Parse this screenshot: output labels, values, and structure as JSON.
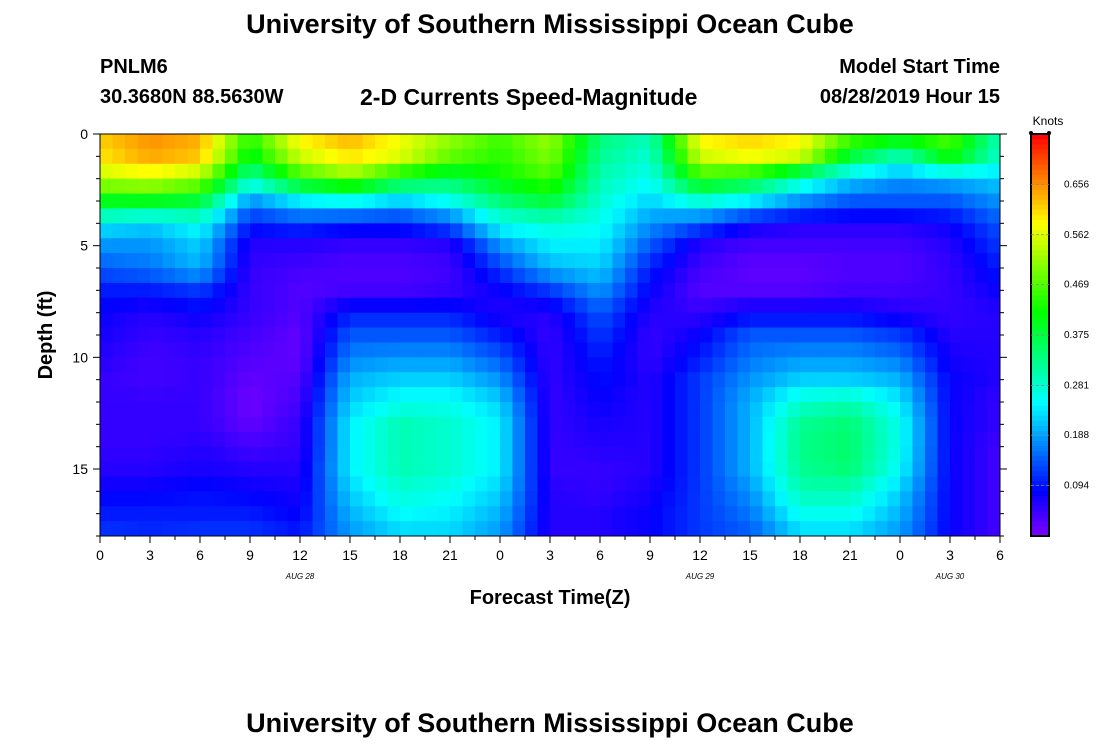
{
  "header": {
    "title": "University of Southern Mississippi Ocean Cube",
    "station_id": "PNLM6",
    "station_coords": "30.3680N 88.5630W",
    "plot_title": "2-D Currents Speed-Magnitude",
    "start_label": "Model Start Time",
    "start_value": "08/28/2019 Hour 15"
  },
  "footer": {
    "title": "University of Southern Mississippi Ocean Cube"
  },
  "chart_data": {
    "type": "heatmap",
    "xlabel": "Forecast Time(Z)",
    "ylabel": "Depth (ft)",
    "colorbar_label": "Knots",
    "y_range": [
      0,
      18
    ],
    "y_ticks": [
      0,
      5,
      10,
      15
    ],
    "x_tick_labels": [
      "0",
      "3",
      "6",
      "9",
      "12",
      "15",
      "18",
      "21",
      "0",
      "3",
      "6",
      "9",
      "12",
      "15",
      "18",
      "21",
      "0",
      "3",
      "6"
    ],
    "date_labels": [
      {
        "label": "AUG  28",
        "tick_index": 4
      },
      {
        "label": "AUG  29",
        "tick_index": 12
      },
      {
        "label": "AUG  30",
        "tick_index": 17
      }
    ],
    "colorbar_range": [
      0,
      0.75
    ],
    "colorbar_ticks": [
      0.094,
      0.188,
      0.281,
      0.375,
      0.469,
      0.562,
      0.656
    ],
    "colorbar_tick_labels": [
      "0.094",
      "0.188",
      "0.281",
      "0.375",
      "0.469",
      "0.562",
      "0.656"
    ],
    "time_hours": [
      0,
      3,
      6,
      9,
      12,
      15,
      18,
      21,
      24,
      27,
      30,
      33,
      36,
      39,
      42,
      45,
      48,
      51,
      54
    ],
    "depth_ft": [
      0,
      1,
      2,
      3,
      4,
      5,
      6,
      7,
      8,
      9,
      10,
      11,
      12,
      13,
      14,
      15,
      16,
      17,
      18
    ],
    "speed_knots": [
      [
        0.62,
        0.66,
        0.64,
        0.45,
        0.6,
        0.64,
        0.58,
        0.52,
        0.46,
        0.52,
        0.34,
        0.3,
        0.6,
        0.62,
        0.6,
        0.48,
        0.44,
        0.48,
        0.3
      ],
      [
        0.6,
        0.64,
        0.62,
        0.4,
        0.55,
        0.6,
        0.56,
        0.48,
        0.44,
        0.5,
        0.32,
        0.28,
        0.55,
        0.58,
        0.55,
        0.38,
        0.3,
        0.42,
        0.28
      ],
      [
        0.54,
        0.56,
        0.52,
        0.3,
        0.44,
        0.5,
        0.4,
        0.36,
        0.42,
        0.46,
        0.3,
        0.26,
        0.44,
        0.4,
        0.3,
        0.22,
        0.18,
        0.2,
        0.22
      ],
      [
        0.4,
        0.4,
        0.38,
        0.18,
        0.24,
        0.26,
        0.22,
        0.26,
        0.34,
        0.38,
        0.28,
        0.22,
        0.28,
        0.24,
        0.18,
        0.14,
        0.14,
        0.14,
        0.18
      ],
      [
        0.24,
        0.22,
        0.26,
        0.1,
        0.12,
        0.1,
        0.1,
        0.14,
        0.26,
        0.28,
        0.26,
        0.18,
        0.14,
        0.08,
        0.06,
        0.06,
        0.06,
        0.08,
        0.14
      ],
      [
        0.18,
        0.18,
        0.22,
        0.06,
        0.06,
        0.05,
        0.05,
        0.06,
        0.18,
        0.24,
        0.24,
        0.14,
        0.06,
        0.04,
        0.04,
        0.04,
        0.04,
        0.06,
        0.12
      ],
      [
        0.14,
        0.16,
        0.2,
        0.05,
        0.04,
        0.03,
        0.03,
        0.04,
        0.12,
        0.2,
        0.22,
        0.1,
        0.04,
        0.02,
        0.02,
        0.03,
        0.03,
        0.05,
        0.1
      ],
      [
        0.1,
        0.1,
        0.12,
        0.05,
        0.03,
        0.04,
        0.04,
        0.05,
        0.08,
        0.12,
        0.18,
        0.08,
        0.03,
        0.03,
        0.03,
        0.04,
        0.04,
        0.05,
        0.08
      ],
      [
        0.08,
        0.06,
        0.08,
        0.05,
        0.03,
        0.1,
        0.1,
        0.1,
        0.06,
        0.06,
        0.14,
        0.06,
        0.05,
        0.08,
        0.08,
        0.08,
        0.06,
        0.05,
        0.06
      ],
      [
        0.07,
        0.05,
        0.06,
        0.04,
        0.02,
        0.14,
        0.14,
        0.14,
        0.1,
        0.05,
        0.12,
        0.05,
        0.08,
        0.14,
        0.14,
        0.14,
        0.12,
        0.06,
        0.06
      ],
      [
        0.06,
        0.04,
        0.05,
        0.03,
        0.02,
        0.17,
        0.18,
        0.18,
        0.14,
        0.05,
        0.1,
        0.05,
        0.1,
        0.16,
        0.18,
        0.18,
        0.16,
        0.07,
        0.06
      ],
      [
        0.05,
        0.04,
        0.05,
        0.02,
        0.03,
        0.2,
        0.22,
        0.22,
        0.18,
        0.05,
        0.09,
        0.06,
        0.12,
        0.18,
        0.22,
        0.22,
        0.2,
        0.08,
        0.06
      ],
      [
        0.05,
        0.05,
        0.05,
        0.01,
        0.04,
        0.22,
        0.26,
        0.26,
        0.22,
        0.05,
        0.08,
        0.06,
        0.12,
        0.2,
        0.28,
        0.3,
        0.24,
        0.08,
        0.05
      ],
      [
        0.05,
        0.05,
        0.05,
        0.02,
        0.05,
        0.24,
        0.3,
        0.28,
        0.24,
        0.05,
        0.07,
        0.06,
        0.12,
        0.2,
        0.32,
        0.34,
        0.26,
        0.08,
        0.05
      ],
      [
        0.05,
        0.05,
        0.06,
        0.04,
        0.05,
        0.24,
        0.3,
        0.28,
        0.24,
        0.05,
        0.06,
        0.06,
        0.12,
        0.2,
        0.33,
        0.35,
        0.26,
        0.08,
        0.04
      ],
      [
        0.06,
        0.06,
        0.07,
        0.06,
        0.06,
        0.24,
        0.3,
        0.28,
        0.24,
        0.05,
        0.05,
        0.06,
        0.12,
        0.2,
        0.32,
        0.34,
        0.25,
        0.08,
        0.04
      ],
      [
        0.08,
        0.08,
        0.09,
        0.08,
        0.07,
        0.22,
        0.28,
        0.26,
        0.22,
        0.06,
        0.05,
        0.07,
        0.12,
        0.18,
        0.3,
        0.3,
        0.22,
        0.08,
        0.04
      ],
      [
        0.1,
        0.1,
        0.1,
        0.1,
        0.08,
        0.2,
        0.25,
        0.24,
        0.2,
        0.06,
        0.06,
        0.08,
        0.12,
        0.16,
        0.26,
        0.26,
        0.2,
        0.08,
        0.04
      ],
      [
        0.12,
        0.11,
        0.12,
        0.12,
        0.1,
        0.18,
        0.22,
        0.22,
        0.18,
        0.06,
        0.06,
        0.08,
        0.12,
        0.14,
        0.22,
        0.22,
        0.18,
        0.08,
        0.04
      ]
    ]
  }
}
